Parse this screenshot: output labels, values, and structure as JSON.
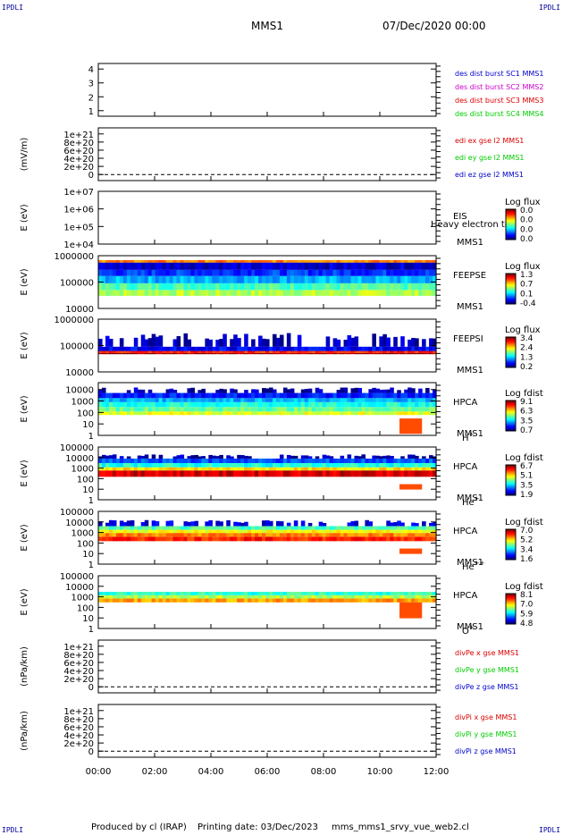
{
  "page": {
    "corner_tl": "IPDLI",
    "corner_tr": "IPDLI",
    "corner_bl": "IPDLI",
    "corner_br": "IPDLI",
    "mission": "MMS1",
    "date": "07/Dec/2020 00:00",
    "footer_producer": "Produced by cl (IRAP)",
    "footer_printing": "Printing date: 03/Dec/2023",
    "footer_script": "mms_mms1_srvy_vue_web2.cl",
    "colors": {
      "blue": "#0000cc",
      "magenta": "#cc00cc",
      "red": "#dd0000",
      "green": "#00cc00",
      "background": "#ffffff"
    }
  },
  "chart_data": [
    {
      "type": "line",
      "id": "des",
      "y_ticks": [
        "1",
        "2",
        "3",
        "4"
      ],
      "ylim": [
        0.6,
        4.4
      ],
      "legend": [
        {
          "label": "des dist burst SC1 MMS1",
          "color": "#0000cc"
        },
        {
          "label": "des dist burst SC2 MMS2",
          "color": "#cc00cc"
        },
        {
          "label": "des dist burst SC3 MMS3",
          "color": "#dd0000"
        },
        {
          "label": "des dist burst SC4 MMS4",
          "color": "#00cc00"
        }
      ],
      "series": []
    },
    {
      "type": "line",
      "id": "edi",
      "ylabel": "(mV/m)",
      "y_ticks": [
        "0",
        "2e+20",
        "4e+20",
        "6e+20",
        "8e+20",
        "1e+21"
      ],
      "ylim": [
        -0.15,
        1.15
      ],
      "zero_line": true,
      "legend": [
        {
          "label": "edi ex gse l2 MMS1",
          "color": "#dd0000"
        },
        {
          "label": "edi ey gse l2 MMS1",
          "color": "#00cc00"
        },
        {
          "label": "edi ez gse l2 MMS1",
          "color": "#0000cc"
        }
      ],
      "series": []
    },
    {
      "type": "heatmap",
      "id": "eis",
      "ylabel": "E (eV)",
      "y_ticks": [
        "1e+04",
        "1e+05",
        "1e+06",
        "1e+07"
      ],
      "log": true,
      "ylim": [
        10000,
        10000000
      ],
      "labels": [
        "EIS",
        "MMS1"
      ],
      "overlay_text": "Heavy electron to",
      "colorbar": {
        "title": "Log flux",
        "ticks": [
          "0.0",
          "0.0",
          "0.0",
          "0.0"
        ]
      },
      "bands": []
    },
    {
      "type": "heatmap",
      "id": "feepse",
      "ylabel": "E (eV)",
      "y_ticks": [
        "10000",
        "100000",
        "1000000"
      ],
      "log": true,
      "ylim": [
        10000,
        1000000
      ],
      "labels": [
        "FEEPSE",
        "MMS1"
      ],
      "colorbar": {
        "title": "Log flux",
        "ticks": [
          "1.3",
          "0.7",
          "0.1",
          "-0.4"
        ]
      },
      "bands": [
        {
          "e_lo": 30000,
          "e_hi": 50000,
          "value": 0.55
        },
        {
          "e_lo": 50000,
          "e_hi": 90000,
          "value": 0.45
        },
        {
          "e_lo": 90000,
          "e_hi": 170000,
          "value": 0.3
        },
        {
          "e_lo": 170000,
          "e_hi": 290000,
          "value": 0.18
        },
        {
          "e_lo": 290000,
          "e_hi": 550000,
          "value": 0.08
        },
        {
          "e_lo": 550000,
          "e_hi": 680000,
          "value": 0.75
        }
      ]
    },
    {
      "type": "heatmap",
      "id": "feepsi",
      "ylabel": "E (eV)",
      "y_ticks": [
        "10000",
        "100000",
        "1000000"
      ],
      "log": true,
      "ylim": [
        10000,
        1000000
      ],
      "labels": [
        "FEEPSI",
        "MMS1"
      ],
      "colorbar": {
        "title": "Log flux",
        "ticks": [
          "3.4",
          "2.4",
          "1.3",
          "0.2"
        ]
      },
      "bands": [
        {
          "e_lo": 47000,
          "e_hi": 52000,
          "value": 0.97
        },
        {
          "e_lo": 52000,
          "e_hi": 62000,
          "value": 0.85
        },
        {
          "e_lo": 62000,
          "e_hi": 90000,
          "value": 0.12
        },
        {
          "e_lo": 90000,
          "e_hi": 300000,
          "value": 0.06,
          "sparse": true
        }
      ]
    },
    {
      "type": "heatmap",
      "id": "hpca_h",
      "ylabel": "E (eV)",
      "y_ticks": [
        "1",
        "10",
        "100",
        "1000",
        "10000"
      ],
      "log": true,
      "ylim": [
        1,
        40000
      ],
      "labels": [
        "HPCA",
        "MMS1"
      ],
      "species": "H",
      "species_sup": "+",
      "colorbar": {
        "title": "Log fdist",
        "ticks": [
          "9.1",
          "6.3",
          "3.5",
          "0.7"
        ]
      },
      "bands": [
        {
          "e_lo": 60,
          "e_hi": 120,
          "value": 0.6
        },
        {
          "e_lo": 120,
          "e_hi": 300,
          "value": 0.48
        },
        {
          "e_lo": 300,
          "e_hi": 800,
          "value": 0.4
        },
        {
          "e_lo": 800,
          "e_hi": 1800,
          "value": 0.3
        },
        {
          "e_lo": 1800,
          "e_hi": 5000,
          "value": 0.15
        },
        {
          "e_lo": 5000,
          "e_hi": 15000,
          "value": 0.05,
          "sparse": true
        }
      ]
    },
    {
      "type": "heatmap",
      "id": "hpca_he",
      "ylabel": "E (eV)",
      "y_ticks": [
        "1",
        "10",
        "100",
        "1000",
        "10000",
        "100000"
      ],
      "log": true,
      "ylim": [
        1,
        100000
      ],
      "labels": [
        "HPCA",
        "MMS1"
      ],
      "species": "He",
      "species_sup": "+",
      "colorbar": {
        "title": "Log fdist",
        "ticks": [
          "6.7",
          "5.1",
          "3.5",
          "1.9"
        ]
      },
      "bands": [
        {
          "e_lo": 150,
          "e_hi": 600,
          "value": 0.92
        },
        {
          "e_lo": 600,
          "e_hi": 1200,
          "value": 0.65
        },
        {
          "e_lo": 1200,
          "e_hi": 3000,
          "value": 0.4
        },
        {
          "e_lo": 3000,
          "e_hi": 8000,
          "value": 0.2
        },
        {
          "e_lo": 8000,
          "e_hi": 20000,
          "value": 0.05,
          "sparse": true
        }
      ]
    },
    {
      "type": "heatmap",
      "id": "hpca_hepp",
      "ylabel": "E (eV)",
      "y_ticks": [
        "1",
        "10",
        "100",
        "1000",
        "10000",
        "100000"
      ],
      "log": true,
      "ylim": [
        1,
        100000
      ],
      "labels": [
        "HPCA",
        "MMS1"
      ],
      "species": "He",
      "species_sup": "++",
      "colorbar": {
        "title": "Log fdist",
        "ticks": [
          "7.0",
          "5.2",
          "3.4",
          "1.6"
        ]
      },
      "bands": [
        {
          "e_lo": 150,
          "e_hi": 400,
          "value": 0.85
        },
        {
          "e_lo": 400,
          "e_hi": 900,
          "value": 0.75
        },
        {
          "e_lo": 900,
          "e_hi": 1800,
          "value": 0.62
        },
        {
          "e_lo": 1800,
          "e_hi": 4000,
          "value": 0.45
        },
        {
          "e_lo": 4000,
          "e_hi": 15000,
          "value": 0.1,
          "sparse": true
        }
      ]
    },
    {
      "type": "heatmap",
      "id": "hpca_o",
      "ylabel": "E (eV)",
      "y_ticks": [
        "1",
        "10",
        "100",
        "1000",
        "10000",
        "100000"
      ],
      "log": true,
      "ylim": [
        1,
        100000
      ],
      "labels": [
        "HPCA",
        "MMS1"
      ],
      "species": "O",
      "species_sup": "+",
      "colorbar": {
        "title": "Log fdist",
        "ticks": [
          "8.1",
          "7.0",
          "5.9",
          "4.8"
        ]
      },
      "bands": [
        {
          "e_lo": 300,
          "e_hi": 700,
          "value": 0.72
        },
        {
          "e_lo": 700,
          "e_hi": 1400,
          "value": 0.55
        },
        {
          "e_lo": 1400,
          "e_hi": 3000,
          "value": 0.42
        }
      ]
    },
    {
      "type": "line",
      "id": "divpe",
      "ylabel": "(nPa/km)",
      "y_ticks": [
        "0",
        "2e+20",
        "4e+20",
        "6e+20",
        "8e+20",
        "1e+21"
      ],
      "ylim": [
        -0.15,
        1.15
      ],
      "zero_line": true,
      "legend": [
        {
          "label": "divPe x gse MMS1",
          "color": "#dd0000"
        },
        {
          "label": "divPe y gse MMS1",
          "color": "#00cc00"
        },
        {
          "label": "divPe z gse MMS1",
          "color": "#0000cc"
        }
      ],
      "series": []
    },
    {
      "type": "line",
      "id": "divpi",
      "ylabel": "(nPa/km)",
      "y_ticks": [
        "0",
        "2e+20",
        "4e+20",
        "6e+20",
        "8e+20",
        "1e+21"
      ],
      "ylim": [
        -0.15,
        1.15
      ],
      "zero_line": true,
      "legend": [
        {
          "label": "divPi x gse MMS1",
          "color": "#dd0000"
        },
        {
          "label": "divPi y gse MMS1",
          "color": "#00cc00"
        },
        {
          "label": "divPi z gse MMS1",
          "color": "#0000cc"
        }
      ],
      "series": []
    }
  ],
  "x_axis": {
    "ticks": [
      "00:00",
      "02:00",
      "04:00",
      "06:00",
      "08:00",
      "10:00",
      "12:00"
    ],
    "xlim_hours": [
      0,
      12
    ]
  }
}
